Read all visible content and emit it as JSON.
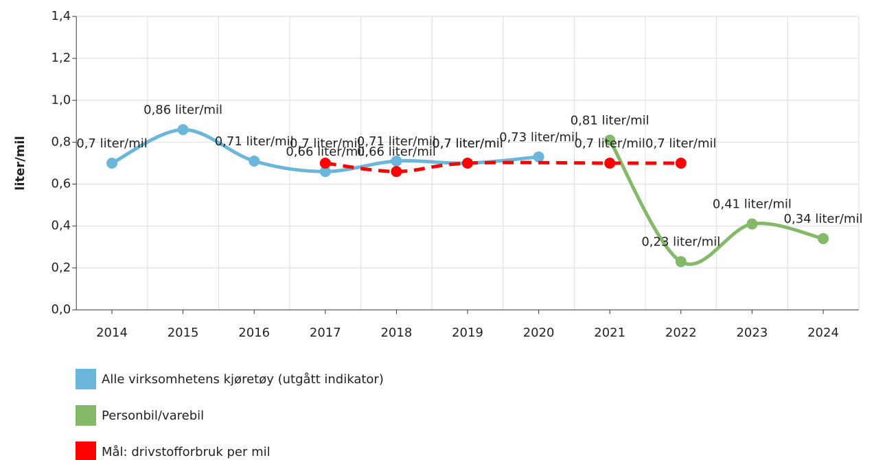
{
  "chart_data": {
    "type": "line",
    "y_label": "liter/mil",
    "categories": [
      "2014",
      "2015",
      "2016",
      "2017",
      "2018",
      "2019",
      "2020",
      "2021",
      "2022",
      "2023",
      "2024"
    ],
    "series": [
      {
        "name": "Alle virksomhetens kjøretøy (utgått indikator)",
        "color": "#6bb7db",
        "dashed": false,
        "values": [
          0.7,
          0.86,
          0.71,
          0.66,
          0.71,
          0.7,
          0.73,
          null,
          null,
          null,
          null
        ],
        "value_labels": [
          "0,7 liter/mil",
          "0,86 liter/mil",
          "0,71 liter/mil",
          "0,66 liter/mil",
          "0,71 liter/mil",
          "0,7 liter/mil",
          "0,73 liter/mil",
          null,
          null,
          null,
          null
        ]
      },
      {
        "name": "Personbil/varebil",
        "color": "#83b968",
        "dashed": false,
        "values": [
          null,
          null,
          null,
          null,
          null,
          null,
          null,
          0.81,
          0.23,
          0.41,
          0.34
        ],
        "value_labels": [
          null,
          null,
          null,
          null,
          null,
          null,
          null,
          "0,81 liter/mil",
          "0,23 liter/mil",
          "0,41 liter/mil",
          "0,34 liter/mil"
        ]
      },
      {
        "name": "Mål: drivstofforbruk per mil",
        "color": "#ff0000",
        "dashed": true,
        "span_gaps": true,
        "values": [
          null,
          null,
          null,
          0.7,
          0.66,
          0.7,
          null,
          0.7,
          0.7,
          null,
          null
        ],
        "value_labels": [
          null,
          null,
          null,
          "0,7 liter/mil",
          "0,66 liter/mil",
          "0,7 liter/mil",
          null,
          "0,7 liter/mil",
          "0,7 liter/mil",
          null,
          null
        ]
      }
    ],
    "ylim": [
      0,
      1.4
    ],
    "yticks": [
      {
        "value": 0,
        "label": "0,0"
      },
      {
        "value": 0.2,
        "label": "0,2"
      },
      {
        "value": 0.4,
        "label": "0,4"
      },
      {
        "value": 0.6,
        "label": "0,6"
      },
      {
        "value": 0.8,
        "label": "0,8"
      },
      {
        "value": 1.0,
        "label": "1,0"
      },
      {
        "value": 1.2,
        "label": "1,2"
      },
      {
        "value": 1.4,
        "label": "1,4"
      }
    ],
    "grid": true
  }
}
